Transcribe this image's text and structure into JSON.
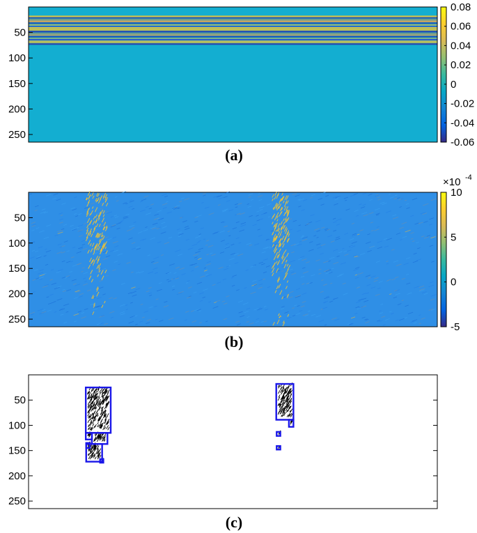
{
  "chart_data": [
    {
      "type": "heatmap",
      "caption": "(a)",
      "ylim": [
        0,
        265
      ],
      "yticks": [
        "50",
        "100",
        "150",
        "200",
        "250"
      ],
      "ytick_values": [
        50,
        100,
        150,
        200,
        250
      ],
      "colorbar": {
        "range": [
          -0.06,
          0.08
        ],
        "ticks": [
          "0.08",
          "0.06",
          "0.04",
          "0.02",
          "0",
          "-0.02",
          "-0.04",
          "-0.06"
        ],
        "tick_values": [
          0.08,
          0.06,
          0.04,
          0.02,
          0,
          -0.02,
          -0.04,
          -0.06
        ]
      },
      "background_value": 0,
      "bands": {
        "rows": [
          17,
          73
        ],
        "pattern": "alternating horizontal stripes",
        "amplitude": 0.08
      }
    },
    {
      "type": "heatmap",
      "caption": "(b)",
      "ylim": [
        0,
        265
      ],
      "yticks": [
        "50",
        "100",
        "150",
        "200",
        "250"
      ],
      "ytick_values": [
        50,
        100,
        150,
        200,
        250
      ],
      "colorbar": {
        "range": [
          -5,
          10
        ],
        "multiplier": "×10",
        "exponent": "-4",
        "ticks": [
          "10",
          "5",
          "0",
          "-5"
        ],
        "tick_values": [
          10,
          5,
          0,
          -5
        ]
      },
      "background_value": 0,
      "hot_regions": [
        {
          "x_fraction": [
            0.14,
            0.19
          ],
          "rows": [
            5,
            265
          ],
          "peak": 8
        },
        {
          "x_fraction": [
            0.595,
            0.635
          ],
          "rows": [
            5,
            265
          ],
          "peak": 8
        }
      ]
    },
    {
      "type": "scatter",
      "caption": "(c)",
      "ylim": [
        0,
        265
      ],
      "yticks": [
        "50",
        "100",
        "150",
        "200",
        "250"
      ],
      "ytick_values": [
        50,
        100,
        150,
        200,
        250
      ],
      "detections": [
        {
          "x_fraction": [
            0.14,
            0.201
          ],
          "rows": [
            25,
            115
          ],
          "kind": "box"
        },
        {
          "x_fraction": [
            0.155,
            0.193
          ],
          "rows": [
            115,
            137
          ],
          "kind": "box"
        },
        {
          "x_fraction": [
            0.14,
            0.155
          ],
          "rows": [
            115,
            128
          ],
          "kind": "box"
        },
        {
          "x_fraction": [
            0.141,
            0.18
          ],
          "rows": [
            137,
            172
          ],
          "kind": "box"
        },
        {
          "x_fraction": [
            0.141,
            0.15
          ],
          "rows": [
            135,
            145
          ],
          "kind": "box"
        },
        {
          "x_fraction": [
            0.175,
            0.183
          ],
          "rows": [
            167,
            174
          ],
          "kind": "box"
        },
        {
          "x_fraction": [
            0.606,
            0.648
          ],
          "rows": [
            18,
            89
          ],
          "kind": "box"
        },
        {
          "x_fraction": [
            0.637,
            0.648
          ],
          "rows": [
            89,
            103
          ],
          "kind": "box"
        },
        {
          "x_fraction": [
            0.607,
            0.616
          ],
          "rows": [
            113,
            121
          ],
          "kind": "box"
        },
        {
          "x_fraction": [
            0.607,
            0.616
          ],
          "rows": [
            141,
            148
          ],
          "kind": "box"
        }
      ]
    }
  ],
  "colors": {
    "background_cell": "#13aed1",
    "background_cell_b": "#2f8fe6",
    "hot": "#f2c230",
    "box": "#1a17e8",
    "parula_stops": [
      "#352a87",
      "#0363e1",
      "#1485d4",
      "#06a7c6",
      "#38b99e",
      "#92bf73",
      "#d9ba56",
      "#fcce2e",
      "#f9fb0e"
    ]
  }
}
